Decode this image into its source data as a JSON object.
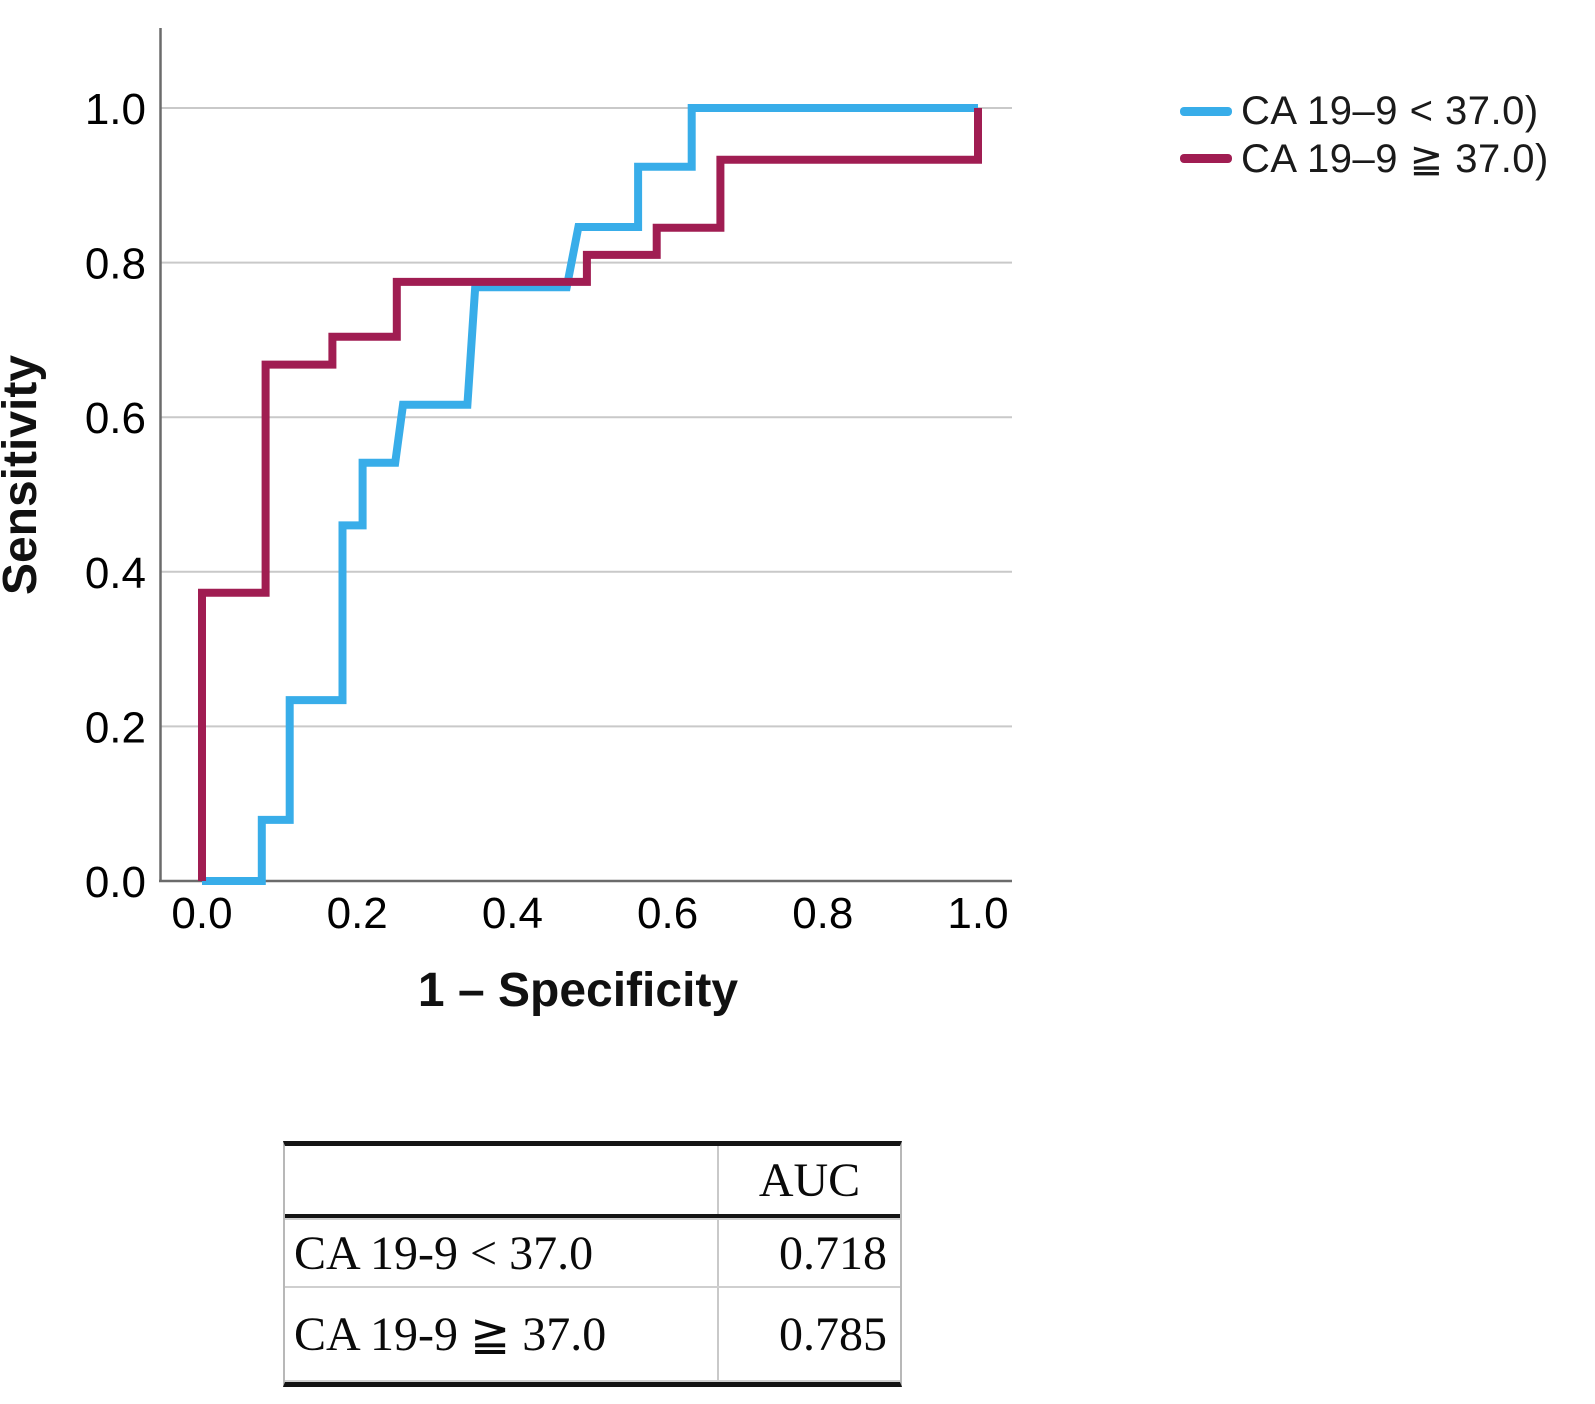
{
  "chart_data": {
    "type": "line",
    "subtype": "roc-step-curves",
    "title": "",
    "xlabel": "1 – Specificity",
    "ylabel": "Sensitivity",
    "xlim": [
      0,
      1
    ],
    "ylim": [
      0,
      1
    ],
    "grid": "horizontal-only",
    "legend_position": "outside-top-right",
    "xticks": [
      {
        "label": "0.0",
        "value": 0.0
      },
      {
        "label": "0.2",
        "value": 0.2
      },
      {
        "label": "0.4",
        "value": 0.4
      },
      {
        "label": "0.6",
        "value": 0.6
      },
      {
        "label": "0.8",
        "value": 0.8
      },
      {
        "label": "1.0",
        "value": 1.0
      }
    ],
    "yticks": [
      {
        "label": "0.0",
        "value": 0.0
      },
      {
        "label": "0.2",
        "value": 0.2
      },
      {
        "label": "0.4",
        "value": 0.4
      },
      {
        "label": "0.6",
        "value": 0.6
      },
      {
        "label": "0.8",
        "value": 0.8
      },
      {
        "label": "1.0",
        "value": 1.0
      }
    ],
    "series": [
      {
        "name": "CA 19–9 < 37.0)",
        "color": "#38ade9",
        "points": [
          [
            0.0,
            0.0
          ],
          [
            0.077,
            0.0
          ],
          [
            0.077,
            0.079
          ],
          [
            0.113,
            0.079
          ],
          [
            0.113,
            0.234
          ],
          [
            0.181,
            0.234
          ],
          [
            0.181,
            0.46
          ],
          [
            0.207,
            0.46
          ],
          [
            0.207,
            0.541
          ],
          [
            0.249,
            0.541
          ],
          [
            0.259,
            0.616
          ],
          [
            0.342,
            0.616
          ],
          [
            0.352,
            0.768
          ],
          [
            0.47,
            0.768
          ],
          [
            0.485,
            0.846
          ],
          [
            0.562,
            0.846
          ],
          [
            0.562,
            0.924
          ],
          [
            0.631,
            0.924
          ],
          [
            0.631,
            1.0
          ],
          [
            1.0,
            1.0
          ]
        ]
      },
      {
        "name": "CA 19–9 ≧ 37.0)",
        "color": "#a01d52",
        "points": [
          [
            0.0,
            0.0
          ],
          [
            0.0,
            0.373
          ],
          [
            0.082,
            0.373
          ],
          [
            0.082,
            0.668
          ],
          [
            0.168,
            0.668
          ],
          [
            0.168,
            0.704
          ],
          [
            0.251,
            0.704
          ],
          [
            0.251,
            0.775
          ],
          [
            0.496,
            0.775
          ],
          [
            0.496,
            0.81
          ],
          [
            0.586,
            0.81
          ],
          [
            0.586,
            0.845
          ],
          [
            0.668,
            0.845
          ],
          [
            0.668,
            0.933
          ],
          [
            1.0,
            0.933
          ],
          [
            1.0,
            1.0
          ]
        ]
      }
    ]
  },
  "table": {
    "headers": [
      "",
      "AUC"
    ],
    "rows": [
      {
        "label": "CA 19-9 < 37.0",
        "auc": "0.718"
      },
      {
        "label": "CA 19-9 ≧ 37.0",
        "auc": "0.785"
      }
    ]
  }
}
